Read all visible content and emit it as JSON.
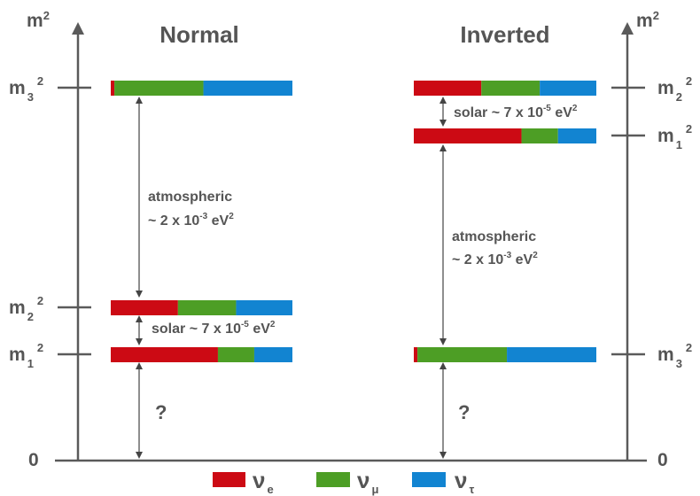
{
  "colors": {
    "nu_e": "#cc0a14",
    "nu_mu": "#4d9e25",
    "nu_tau": "#1284d1",
    "axis": "#5a5a5a",
    "text": "#555555"
  },
  "axis_labels": {
    "left_y": "m",
    "right_y": "m",
    "power": "2",
    "zero_left": "0",
    "zero_right": "0"
  },
  "normal": {
    "title": "Normal",
    "levels": [
      {
        "name": "m3",
        "label": "m",
        "sub": "3",
        "sup": "2",
        "fractions": [
          0.02,
          0.49,
          0.49
        ]
      },
      {
        "name": "m2",
        "label": "m",
        "sub": "2",
        "sup": "2",
        "fractions": [
          0.37,
          0.32,
          0.31
        ]
      },
      {
        "name": "m1",
        "label": "m",
        "sub": "1",
        "sup": "2",
        "fractions": [
          0.59,
          0.2,
          0.21
        ]
      }
    ],
    "atmospheric": {
      "line1": "atmospheric",
      "line2_pre": "~ 2 x 10",
      "exp": "-3",
      "unit": " eV",
      "unit_sup": "2"
    },
    "solar": {
      "pre": "solar ~ 7 x 10",
      "exp": "-5",
      "unit": " eV",
      "unit_sup": "2"
    },
    "unknown": "?"
  },
  "inverted": {
    "title": "Inverted",
    "levels": [
      {
        "name": "m2",
        "label": "m",
        "sub": "2",
        "sup": "2",
        "fractions": [
          0.37,
          0.32,
          0.31
        ]
      },
      {
        "name": "m1",
        "label": "m",
        "sub": "1",
        "sup": "2",
        "fractions": [
          0.59,
          0.2,
          0.21
        ]
      },
      {
        "name": "m3",
        "label": "m",
        "sub": "3",
        "sup": "2",
        "fractions": [
          0.02,
          0.49,
          0.49
        ]
      }
    ],
    "atmospheric": {
      "line1": "atmospheric",
      "line2_pre": "~ 2 x 10",
      "exp": "-3",
      "unit": " eV",
      "unit_sup": "2"
    },
    "solar": {
      "pre": "solar ~ 7 x 10",
      "exp": "-5",
      "unit": " eV",
      "unit_sup": "2"
    },
    "unknown": "?"
  },
  "legend": [
    {
      "symbol": "ν",
      "sub": "e",
      "color": "#cc0a14"
    },
    {
      "symbol": "ν",
      "sub": "μ",
      "color": "#4d9e25"
    },
    {
      "symbol": "ν",
      "sub": "τ",
      "color": "#1284d1"
    }
  ]
}
